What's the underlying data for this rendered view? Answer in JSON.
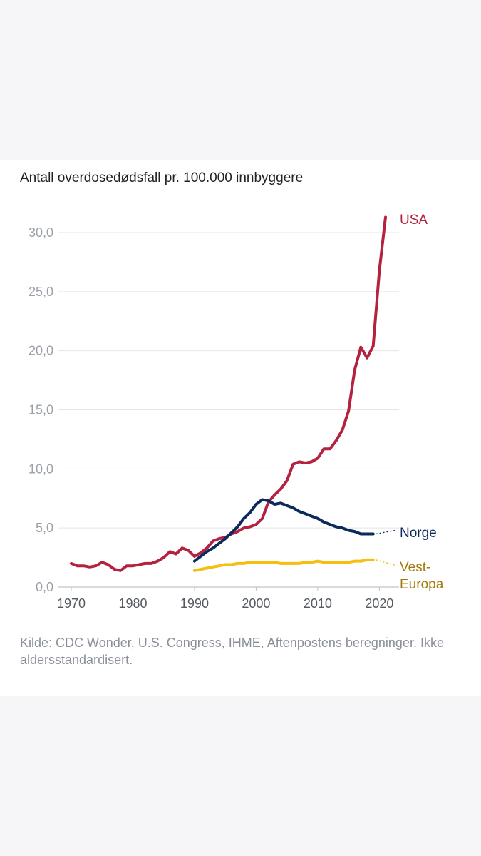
{
  "chart_data": {
    "type": "line",
    "title": "Antall overdosedødsfall pr. 100.000 innbyggere",
    "xlabel": "",
    "ylabel": "",
    "xlim": [
      1968,
      2023
    ],
    "ylim": [
      0,
      30
    ],
    "grid": true,
    "x_ticks": [
      1970,
      1980,
      1990,
      2000,
      2010,
      2020
    ],
    "x_tick_labels": [
      "1970",
      "1980",
      "1990",
      "2000",
      "2010",
      "2020"
    ],
    "y_ticks": [
      0,
      5,
      10,
      15,
      20,
      25,
      30
    ],
    "y_tick_labels": [
      "0,0",
      "5,0",
      "10,0",
      "15,0",
      "20,0",
      "25,0",
      "30,0"
    ],
    "series": [
      {
        "name": "USA",
        "label_lines": [
          "USA"
        ],
        "color": "#b3223f",
        "x": [
          1970,
          1971,
          1972,
          1973,
          1974,
          1975,
          1976,
          1977,
          1978,
          1979,
          1980,
          1981,
          1982,
          1983,
          1984,
          1985,
          1986,
          1987,
          1988,
          1989,
          1990,
          1991,
          1992,
          1993,
          1994,
          1995,
          1996,
          1997,
          1998,
          1999,
          2000,
          2001,
          2002,
          2003,
          2004,
          2005,
          2006,
          2007,
          2008,
          2009,
          2010,
          2011,
          2012,
          2013,
          2014,
          2015,
          2016,
          2017,
          2018,
          2019,
          2020,
          2021
        ],
        "values": [
          2.0,
          1.8,
          1.8,
          1.7,
          1.8,
          2.1,
          1.9,
          1.5,
          1.4,
          1.8,
          1.8,
          1.9,
          2.0,
          2.0,
          2.2,
          2.5,
          3.0,
          2.8,
          3.3,
          3.1,
          2.6,
          2.9,
          3.3,
          3.9,
          4.1,
          4.2,
          4.5,
          4.7,
          5.0,
          5.1,
          5.3,
          5.8,
          7.2,
          7.8,
          8.3,
          9.0,
          10.4,
          10.6,
          10.5,
          10.6,
          10.9,
          11.7,
          11.7,
          12.4,
          13.3,
          14.9,
          18.4,
          20.3,
          19.4,
          20.4,
          26.8,
          31.3
        ]
      },
      {
        "name": "Norge",
        "label_lines": [
          "Norge"
        ],
        "color": "#0c2a5c",
        "x": [
          1990,
          1991,
          1992,
          1993,
          1994,
          1995,
          1996,
          1997,
          1998,
          1999,
          2000,
          2001,
          2002,
          2003,
          2004,
          2005,
          2006,
          2007,
          2008,
          2009,
          2010,
          2011,
          2012,
          2013,
          2014,
          2015,
          2016,
          2017,
          2018,
          2019
        ],
        "values": [
          2.2,
          2.6,
          3.0,
          3.3,
          3.7,
          4.1,
          4.6,
          5.1,
          5.8,
          6.3,
          7.0,
          7.4,
          7.3,
          7.0,
          7.1,
          6.9,
          6.7,
          6.4,
          6.2,
          6.0,
          5.8,
          5.5,
          5.3,
          5.1,
          5.0,
          4.8,
          4.7,
          4.5,
          4.5,
          4.5
        ]
      },
      {
        "name": "Vest-Europa",
        "label_lines": [
          "Vest-",
          "Europa"
        ],
        "color": "#f5bf0f",
        "label_color": "#a27a0c",
        "x": [
          1990,
          1991,
          1992,
          1993,
          1994,
          1995,
          1996,
          1997,
          1998,
          1999,
          2000,
          2001,
          2002,
          2003,
          2004,
          2005,
          2006,
          2007,
          2008,
          2009,
          2010,
          2011,
          2012,
          2013,
          2014,
          2015,
          2016,
          2017,
          2018,
          2019
        ],
        "values": [
          1.4,
          1.5,
          1.6,
          1.7,
          1.8,
          1.9,
          1.9,
          2.0,
          2.0,
          2.1,
          2.1,
          2.1,
          2.1,
          2.1,
          2.0,
          2.0,
          2.0,
          2.0,
          2.1,
          2.1,
          2.2,
          2.1,
          2.1,
          2.1,
          2.1,
          2.1,
          2.2,
          2.2,
          2.3,
          2.3
        ]
      }
    ]
  },
  "source": "Kilde: CDC Wonder, U.S. Congress, IHME, Aftenpostens beregninger. Ikke aldersstandardisert."
}
